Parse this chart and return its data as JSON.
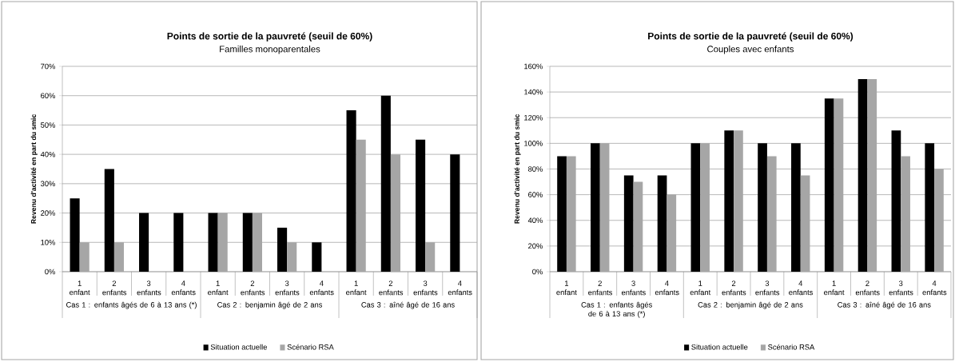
{
  "chart_data": [
    {
      "type": "bar",
      "title": "Points de sortie de la pauvreté (seuil de 60%)",
      "subtitle": "Familles monoparentales",
      "ylabel": "Revenu d'activité en part du smic",
      "categories": [
        "1 enfant",
        "2 enfants",
        "3 enfants",
        "4 enfants",
        "1 enfant",
        "2 enfants",
        "3 enfants",
        "4 enfants",
        "1 enfant",
        "2 enfants",
        "3 enfants",
        "4 enfants"
      ],
      "series": [
        {
          "name": "Situation actuelle",
          "color": "#000000",
          "values": [
            25,
            35,
            20,
            20,
            20,
            20,
            15,
            10,
            55,
            60,
            45,
            40
          ]
        },
        {
          "name": "Scénario RSA",
          "color": "#a6a6a6",
          "values": [
            10,
            10,
            null,
            null,
            20,
            20,
            10,
            null,
            45,
            40,
            10,
            null
          ]
        }
      ],
      "annotations": [
        "Cas 1 : enfants âgés de 6 à 13 ans (*)",
        "Cas 2 : benjamin âgé de 2 ans",
        "Cas 3 : aîné âgé de 16 ans"
      ],
      "ylim": [
        0,
        70
      ],
      "yticks": [
        {
          "value": 0,
          "label": "0%"
        },
        {
          "value": 10,
          "label": "10%"
        },
        {
          "value": 20,
          "label": "20%"
        },
        {
          "value": 30,
          "label": "30%"
        },
        {
          "value": 40,
          "label": "40%"
        },
        {
          "value": 50,
          "label": "50%"
        },
        {
          "value": 60,
          "label": "60%"
        },
        {
          "value": 70,
          "label": "70%"
        }
      ],
      "grid": "y",
      "legend": "bottom"
    },
    {
      "type": "bar",
      "title": "Points de sortie de la pauvreté (seuil de 60%)",
      "subtitle": "Couples avec enfants",
      "ylabel": "Revenu d'activité en part du smic",
      "categories": [
        "1 enfant",
        "2 enfants",
        "3 enfants",
        "4 enfants",
        "1 enfant",
        "2 enfants",
        "3 enfants",
        "4 enfants",
        "1 enfant",
        "2 enfants",
        "3 enfants",
        "4 enfants"
      ],
      "series": [
        {
          "name": "Situation actuelle",
          "color": "#000000",
          "values": [
            90,
            100,
            75,
            75,
            100,
            110,
            100,
            100,
            135,
            150,
            110,
            100
          ]
        },
        {
          "name": "Scénario RSA",
          "color": "#a6a6a6",
          "values": [
            90,
            100,
            70,
            60,
            100,
            110,
            90,
            75,
            135,
            150,
            90,
            80
          ]
        }
      ],
      "annotations": [
        "Cas 1 : enfants âgés de 6 à 13 ans (*)",
        "Cas 2 : benjamin âgé de 2 ans",
        "Cas 3 : aîné âgé de 16 ans"
      ],
      "ylim": [
        0,
        160
      ],
      "yticks": [
        {
          "value": 0,
          "label": "0%"
        },
        {
          "value": 20,
          "label": "20%"
        },
        {
          "value": 40,
          "label": "40%"
        },
        {
          "value": 60,
          "label": "60%"
        },
        {
          "value": 80,
          "label": "80%"
        },
        {
          "value": 100,
          "label": "100%"
        },
        {
          "value": 120,
          "label": "120%"
        },
        {
          "value": 140,
          "label": "140%"
        },
        {
          "value": 160,
          "label": "160%"
        }
      ],
      "grid": "y",
      "legend": "bottom"
    }
  ]
}
